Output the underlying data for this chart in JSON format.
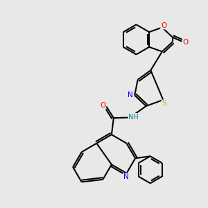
{
  "bg_color": "#e8e8e8",
  "bond_color": "#000000",
  "bond_width": 1.5,
  "atom_colors": {
    "N": "#0000ff",
    "O": "#ff0000",
    "S": "#ccaa00",
    "H": "#008888",
    "C": "#000000"
  },
  "figsize": [
    3.0,
    3.0
  ],
  "dpi": 100
}
